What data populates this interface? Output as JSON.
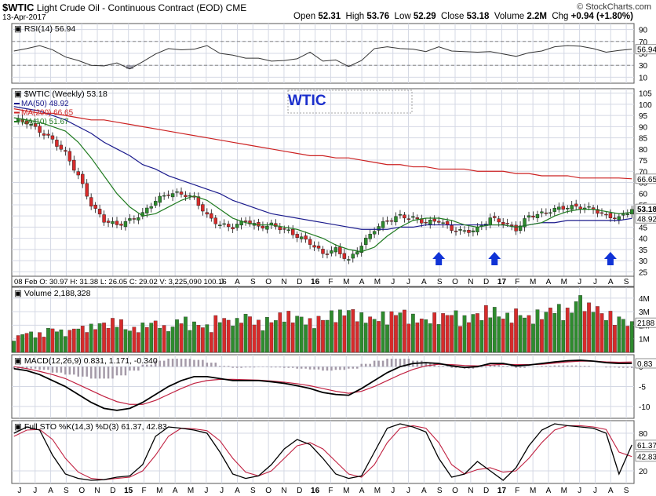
{
  "header": {
    "symbol": "$WTIC",
    "name": "Light Crude Oil - Continuous Contract (EOD)",
    "exchange": "CME",
    "date": "13-Apr-2017",
    "open_label": "Open",
    "open": "52.31",
    "high_label": "High",
    "high": "53.76",
    "low_label": "Low",
    "low": "52.29",
    "close_label": "Close",
    "close": "53.18",
    "volume_label": "Volume",
    "volume": "2.2M",
    "chg_label": "Chg",
    "chg": "+0.94 (+1.80%)",
    "site": "© StockCharts.com"
  },
  "colors": {
    "up": "#2e8b2e",
    "down": "#d62b2b",
    "ma50": "#1a1a8c",
    "ma200": "#cc2222",
    "ma10": "#1f7a1f",
    "grid": "#d4d8e4",
    "arrow": "#1033d6",
    "annotation": "#1a2ecc",
    "macd_line": "#000000",
    "signal_line": "#c02040",
    "histogram": "#a49aa8"
  },
  "icons": [
    "up-arrow-icon"
  ],
  "chart_data": [
    {
      "type": "line",
      "panel": "rsi",
      "title": "RSI(14) 56.94",
      "ylim": [
        0,
        100
      ],
      "yticks": [
        10,
        30,
        50,
        70,
        90
      ],
      "levels": [
        30,
        70
      ],
      "current_label": "56.94",
      "x": [
        0,
        3,
        6,
        9,
        12,
        15,
        18,
        21,
        24,
        27,
        30,
        33,
        36,
        39,
        42,
        45,
        48,
        51,
        54,
        57,
        60,
        63,
        66,
        69,
        72,
        75,
        78,
        81,
        84,
        87,
        90,
        93,
        96,
        99,
        102,
        105,
        108,
        111,
        114,
        117,
        120,
        123,
        126,
        129,
        132,
        135,
        138,
        141,
        144
      ],
      "values": [
        54,
        58,
        63,
        56,
        44,
        38,
        30,
        29,
        34,
        24,
        36,
        49,
        58,
        56,
        57,
        63,
        50,
        47,
        42,
        42,
        37,
        38,
        41,
        52,
        37,
        39,
        28,
        38,
        58,
        61,
        58,
        57,
        53,
        61,
        54,
        53,
        52,
        53,
        49,
        45,
        51,
        54,
        61,
        63,
        62,
        58,
        52,
        55,
        57
      ]
    },
    {
      "type": "candlestick",
      "panel": "price",
      "title": "$WTIC (Weekly) 53.18",
      "annotation": "WTIC",
      "ylim": [
        23,
        107
      ],
      "yticks": [
        25,
        30,
        35,
        40,
        45,
        50,
        55,
        60,
        65,
        70,
        75,
        80,
        85,
        90,
        95,
        100,
        105
      ],
      "current_labels": [
        "66.65",
        "53.18",
        "48.92"
      ],
      "x": [
        0,
        3,
        6,
        9,
        12,
        15,
        18,
        21,
        24,
        27,
        30,
        33,
        36,
        39,
        42,
        45,
        48,
        51,
        54,
        57,
        60,
        63,
        66,
        69,
        72,
        75,
        78,
        81,
        84,
        87,
        90,
        93,
        96,
        99,
        102,
        105,
        108,
        111,
        114,
        117,
        120,
        123,
        126,
        129,
        132,
        135,
        138,
        141,
        144
      ],
      "close": [
        93,
        92,
        88,
        84,
        78,
        68,
        55,
        48,
        46,
        48,
        51,
        57,
        60,
        60,
        58,
        50,
        46,
        45,
        48,
        45,
        46,
        44,
        41,
        38,
        33,
        35,
        30,
        37,
        44,
        48,
        50,
        49,
        47,
        48,
        44,
        43,
        44,
        49,
        47,
        44,
        50,
        51,
        53,
        54,
        54,
        53,
        50,
        49,
        53.2
      ],
      "series": [
        {
          "name": "MA(50) 48.92",
          "values": [
            99,
            98,
            97,
            95,
            93,
            90,
            87,
            83,
            80,
            77,
            73,
            71,
            68,
            66,
            64,
            62,
            60,
            57,
            55,
            53,
            51,
            50,
            49,
            48,
            47,
            46,
            45,
            44,
            44,
            44,
            45,
            45,
            46,
            46,
            46,
            46,
            46,
            46,
            46,
            45,
            46,
            47,
            47,
            48,
            48,
            48,
            48,
            48,
            48.9
          ]
        },
        {
          "name": "MA(200) 66.65",
          "values": [
            98,
            97,
            96,
            96,
            95,
            94,
            93,
            93,
            92,
            91,
            90,
            89,
            88,
            87,
            86,
            85,
            84,
            83,
            82,
            81,
            80,
            79,
            78,
            77,
            77,
            76,
            76,
            75,
            74,
            73,
            73,
            72,
            72,
            71,
            71,
            71,
            70,
            70,
            70,
            69,
            69,
            68,
            68,
            68,
            67,
            67,
            67,
            67,
            66.65
          ]
        },
        {
          "name": "MA(10) 51.67",
          "values": [
            94,
            93,
            92,
            90,
            88,
            83,
            76,
            68,
            60,
            54,
            50,
            51,
            54,
            57,
            59,
            57,
            53,
            49,
            47,
            46,
            46,
            45,
            44,
            42,
            40,
            37,
            35,
            34,
            36,
            41,
            45,
            48,
            49,
            49,
            48,
            46,
            45,
            46,
            46,
            45,
            46,
            47,
            50,
            52,
            53,
            53,
            52,
            51,
            51.67
          ]
        }
      ],
      "markers": [
        {
          "x": 99,
          "label": "up-arrow"
        },
        {
          "x": 112,
          "label": "up-arrow"
        },
        {
          "x": 139,
          "label": "up-arrow"
        }
      ]
    },
    {
      "type": "bar",
      "panel": "volume",
      "title": "Volume 2,188,328",
      "ylim": [
        0,
        4800000
      ],
      "yticks_labels": [
        "1M",
        "2M",
        "3M",
        "4M"
      ],
      "yticks": [
        1000000,
        2000000,
        3000000,
        4000000
      ],
      "current_label": "2188",
      "info_line": "08 Feb O: 30.97 H: 31.38 L: 26.05 C: 29.02 V: 3,225,090 100.16",
      "values": [
        1.2,
        1.5,
        1.4,
        1.8,
        1.6,
        1.9,
        2.0,
        2.2,
        2.4,
        1.8,
        2.1,
        2.3,
        1.9,
        2.5,
        2.2,
        2.0,
        2.6,
        2.4,
        2.8,
        2.3,
        2.5,
        2.9,
        2.7,
        2.4,
        2.6,
        3.0,
        3.2,
        2.8,
        2.6,
        2.9,
        3.1,
        2.7,
        2.5,
        2.8,
        3.0,
        2.6,
        2.9,
        3.3,
        2.8,
        3.1,
        2.7,
        3.0,
        3.4,
        3.2,
        4.1,
        3.5,
        2.9,
        2.6,
        2.2
      ],
      "up": [
        0,
        1,
        0,
        0,
        1,
        0,
        0,
        0,
        1,
        1,
        0,
        1,
        1,
        0,
        1,
        0,
        0,
        1,
        1,
        0,
        1,
        0,
        1,
        0,
        0,
        1,
        0,
        1,
        1,
        1,
        0,
        0,
        1,
        1,
        0,
        0,
        1,
        1,
        0,
        0,
        1,
        1,
        1,
        0,
        1,
        0,
        0,
        1,
        1
      ]
    },
    {
      "type": "line",
      "panel": "macd",
      "title": "MACD(12,26,9) 0.831, 1.171, -0.340",
      "ylim": [
        -13,
        3
      ],
      "yticks": [
        -10,
        -5,
        0
      ],
      "current_label": "0.83",
      "series": [
        {
          "name": "MACD",
          "values": [
            -0.5,
            -1,
            -2,
            -3.5,
            -5,
            -7,
            -9,
            -10.5,
            -11,
            -10.5,
            -9,
            -7,
            -5,
            -3.5,
            -2.5,
            -2.5,
            -3,
            -3.5,
            -3.5,
            -3.5,
            -3.8,
            -4.2,
            -4.8,
            -5.5,
            -6.5,
            -7,
            -7.2,
            -5.5,
            -3.5,
            -1.5,
            0,
            0.8,
            1,
            0.8,
            0.2,
            -0.2,
            0,
            0.8,
            0.8,
            0.2,
            0.4,
            0.8,
            1.2,
            1.5,
            1.6,
            1.4,
            1,
            0.8,
            0.83
          ]
        },
        {
          "name": "Signal",
          "values": [
            0,
            -0.5,
            -1.2,
            -2,
            -3,
            -4.5,
            -6,
            -7.5,
            -8.8,
            -9.5,
            -9.5,
            -8.5,
            -7,
            -5.5,
            -4.2,
            -3.5,
            -3.2,
            -3.2,
            -3.3,
            -3.4,
            -3.6,
            -3.9,
            -4.3,
            -4.8,
            -5.5,
            -6.2,
            -6.7,
            -6.2,
            -5,
            -3.5,
            -2,
            -0.7,
            0.2,
            0.6,
            0.5,
            0.3,
            0.2,
            0.4,
            0.6,
            0.5,
            0.5,
            0.6,
            0.9,
            1.2,
            1.4,
            1.4,
            1.2,
            1.1,
            1.17
          ]
        }
      ],
      "histogram": [
        -0.5,
        -0.5,
        -0.8,
        -1.5,
        -2,
        -2.5,
        -3,
        -3,
        -2.2,
        -1,
        0.5,
        1.5,
        2,
        2,
        1.7,
        1,
        0.2,
        -0.3,
        -0.2,
        -0.1,
        -0.2,
        -0.3,
        -0.5,
        -0.7,
        -1,
        -0.8,
        -0.5,
        0.7,
        1.5,
        2,
        2,
        1.5,
        0.8,
        0.2,
        -0.3,
        -0.5,
        -0.2,
        0.4,
        0.2,
        -0.3,
        -0.1,
        0.2,
        0.3,
        0.3,
        0.2,
        0,
        -0.2,
        -0.3,
        -0.34
      ]
    },
    {
      "type": "line",
      "panel": "stochastic",
      "title": "Full STO %K(14,3) %D(3) 61.37, 42.83",
      "ylim": [
        0,
        100
      ],
      "yticks": [
        20,
        80
      ],
      "levels": [
        20,
        80
      ],
      "current_labels": [
        "61.37",
        "42.83"
      ],
      "series": [
        {
          "name": "%K",
          "values": [
            80,
            90,
            85,
            45,
            15,
            8,
            5,
            6,
            10,
            12,
            30,
            75,
            90,
            88,
            85,
            80,
            50,
            15,
            8,
            12,
            30,
            55,
            70,
            62,
            40,
            15,
            8,
            12,
            50,
            88,
            95,
            90,
            82,
            40,
            10,
            15,
            35,
            20,
            5,
            25,
            60,
            85,
            95,
            92,
            90,
            88,
            80,
            15,
            61.37
          ]
        },
        {
          "name": "%D",
          "values": [
            75,
            85,
            86,
            70,
            40,
            18,
            8,
            6,
            8,
            10,
            20,
            45,
            75,
            88,
            87,
            84,
            68,
            40,
            18,
            12,
            20,
            40,
            60,
            65,
            55,
            35,
            15,
            10,
            30,
            65,
            88,
            92,
            88,
            65,
            30,
            15,
            22,
            25,
            18,
            20,
            40,
            65,
            85,
            92,
            92,
            90,
            86,
            50,
            42.83
          ]
        }
      ]
    }
  ],
  "time_axis": {
    "labels": [
      "J",
      "J",
      "A",
      "S",
      "O",
      "N",
      "D",
      "15",
      "F",
      "M",
      "A",
      "M",
      "J",
      "J",
      "A",
      "S",
      "O",
      "N",
      "D",
      "16",
      "F",
      "M",
      "A",
      "M",
      "J",
      "J",
      "A",
      "S",
      "O",
      "N",
      "D",
      "17",
      "F",
      "M",
      "A",
      "M",
      "J",
      "J",
      "A",
      "S"
    ],
    "bold": [
      "15",
      "16",
      "17"
    ]
  }
}
